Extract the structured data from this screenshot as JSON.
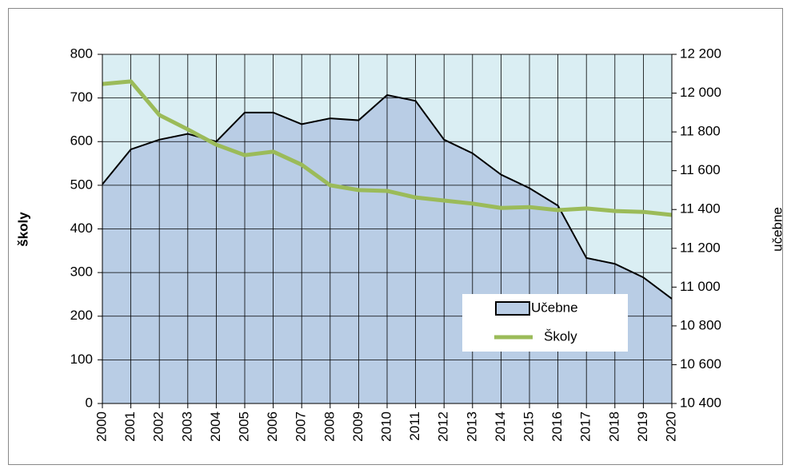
{
  "chart_data": {
    "type": "area-line",
    "y_label": "školy",
    "y2_label": "učebne",
    "categories": [
      "2000",
      "2001",
      "2002",
      "2003",
      "2004",
      "2005",
      "2006",
      "2007",
      "2008",
      "2009",
      "2010",
      "2011",
      "2012",
      "2013",
      "2014",
      "2015",
      "2016",
      "2017",
      "2018",
      "2019",
      "2020"
    ],
    "series": [
      {
        "name": "Učebne",
        "type": "area",
        "axis": "y2",
        "color": "#b9cde5",
        "values": [
          11530,
          11710,
          11760,
          11790,
          11750,
          11900,
          11900,
          11840,
          11870,
          11860,
          11990,
          11960,
          11760,
          11690,
          11580,
          11510,
          11420,
          11150,
          11120,
          11050,
          10940
        ]
      },
      {
        "name": "Školy",
        "type": "line",
        "color": "#9bbb59",
        "values": [
          732,
          738,
          661,
          628,
          593,
          569,
          577,
          547,
          500,
          489,
          487,
          472,
          465,
          458,
          448,
          450,
          443,
          447,
          441,
          439,
          432
        ]
      }
    ],
    "ylim": [
      0,
      800
    ],
    "yticks": [
      0,
      100,
      200,
      300,
      400,
      500,
      600,
      700,
      800
    ],
    "y2lim": [
      10400,
      12200
    ],
    "y2ticks": [
      {
        "value": 10400,
        "label": "10 400"
      },
      {
        "value": 10600,
        "label": "10 600"
      },
      {
        "value": 10800,
        "label": "10 800"
      },
      {
        "value": 11000,
        "label": "11 000"
      },
      {
        "value": 11200,
        "label": "11 200"
      },
      {
        "value": 11400,
        "label": "11 400"
      },
      {
        "value": 11600,
        "label": "11 600"
      },
      {
        "value": 11800,
        "label": "11 800"
      },
      {
        "value": 12000,
        "label": "12 000"
      },
      {
        "value": 12200,
        "label": "12 200"
      }
    ],
    "grid": true,
    "plot_background": "#daeef3",
    "legend": "lower right"
  }
}
